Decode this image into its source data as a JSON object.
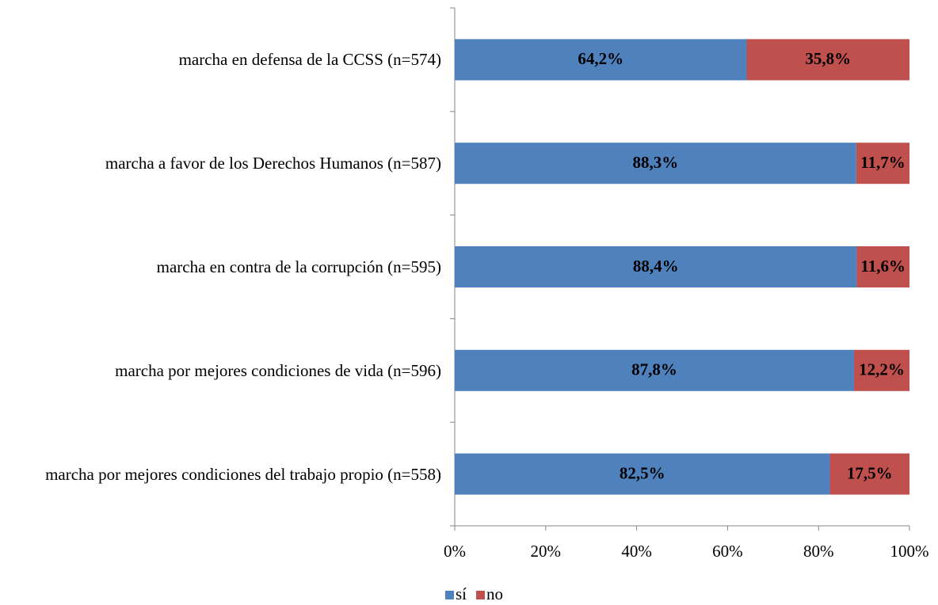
{
  "chart_data": {
    "type": "stacked_barh",
    "categories": [
      "marcha en defensa de la CCSS (n=574)",
      "marcha a favor de los Derechos Humanos (n=587)",
      "marcha en contra de la corrupción (n=595)",
      "marcha por mejores condiciones de vida (n=596)",
      "marcha por mejores condiciones del trabajo propio (n=558)"
    ],
    "series": [
      {
        "name": "sí",
        "color": "#4f81bd",
        "values": [
          64.2,
          88.3,
          88.4,
          87.8,
          82.5
        ],
        "value_labels": [
          "64,2%",
          "88,3%",
          "88,4%",
          "87,8%",
          "82,5%"
        ]
      },
      {
        "name": "no",
        "color": "#c0504d",
        "values": [
          35.8,
          11.7,
          11.6,
          12.2,
          17.5
        ],
        "value_labels": [
          "35,8%",
          "11,7%",
          "11,6%",
          "12,2%",
          "17,5%"
        ]
      }
    ],
    "xlim": [
      0,
      100
    ],
    "xticks": [
      {
        "value": 0,
        "label": "0%"
      },
      {
        "value": 20,
        "label": "20%"
      },
      {
        "value": 40,
        "label": "40%"
      },
      {
        "value": 60,
        "label": "60%"
      },
      {
        "value": 80,
        "label": "80%"
      },
      {
        "value": 100,
        "label": "100%"
      }
    ],
    "legend": "bottom"
  }
}
